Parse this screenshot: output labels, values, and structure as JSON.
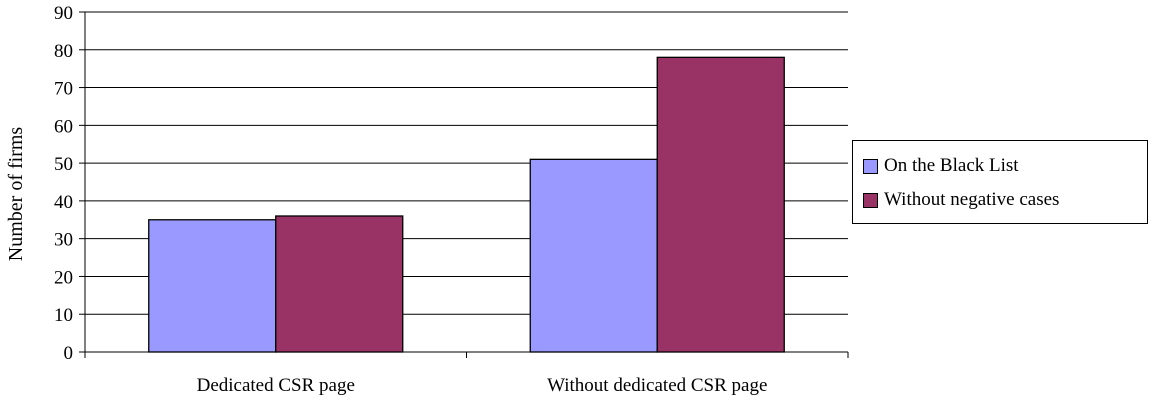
{
  "chart_data": {
    "type": "bar",
    "categories": [
      "Dedicated CSR page",
      "Without dedicated CSR page"
    ],
    "series": [
      {
        "name": "On the Black List",
        "values": [
          35,
          51
        ],
        "color": "#9999ff"
      },
      {
        "name": "Without negative cases",
        "values": [
          36,
          78
        ],
        "color": "#993366"
      }
    ],
    "title": "",
    "xlabel": "",
    "ylabel": "Number of firms",
    "ylim": [
      0,
      90
    ],
    "yticks": [
      "0",
      "10",
      "20",
      "30",
      "40",
      "50",
      "60",
      "70",
      "80",
      "90"
    ],
    "grid": true,
    "legend": "right"
  }
}
